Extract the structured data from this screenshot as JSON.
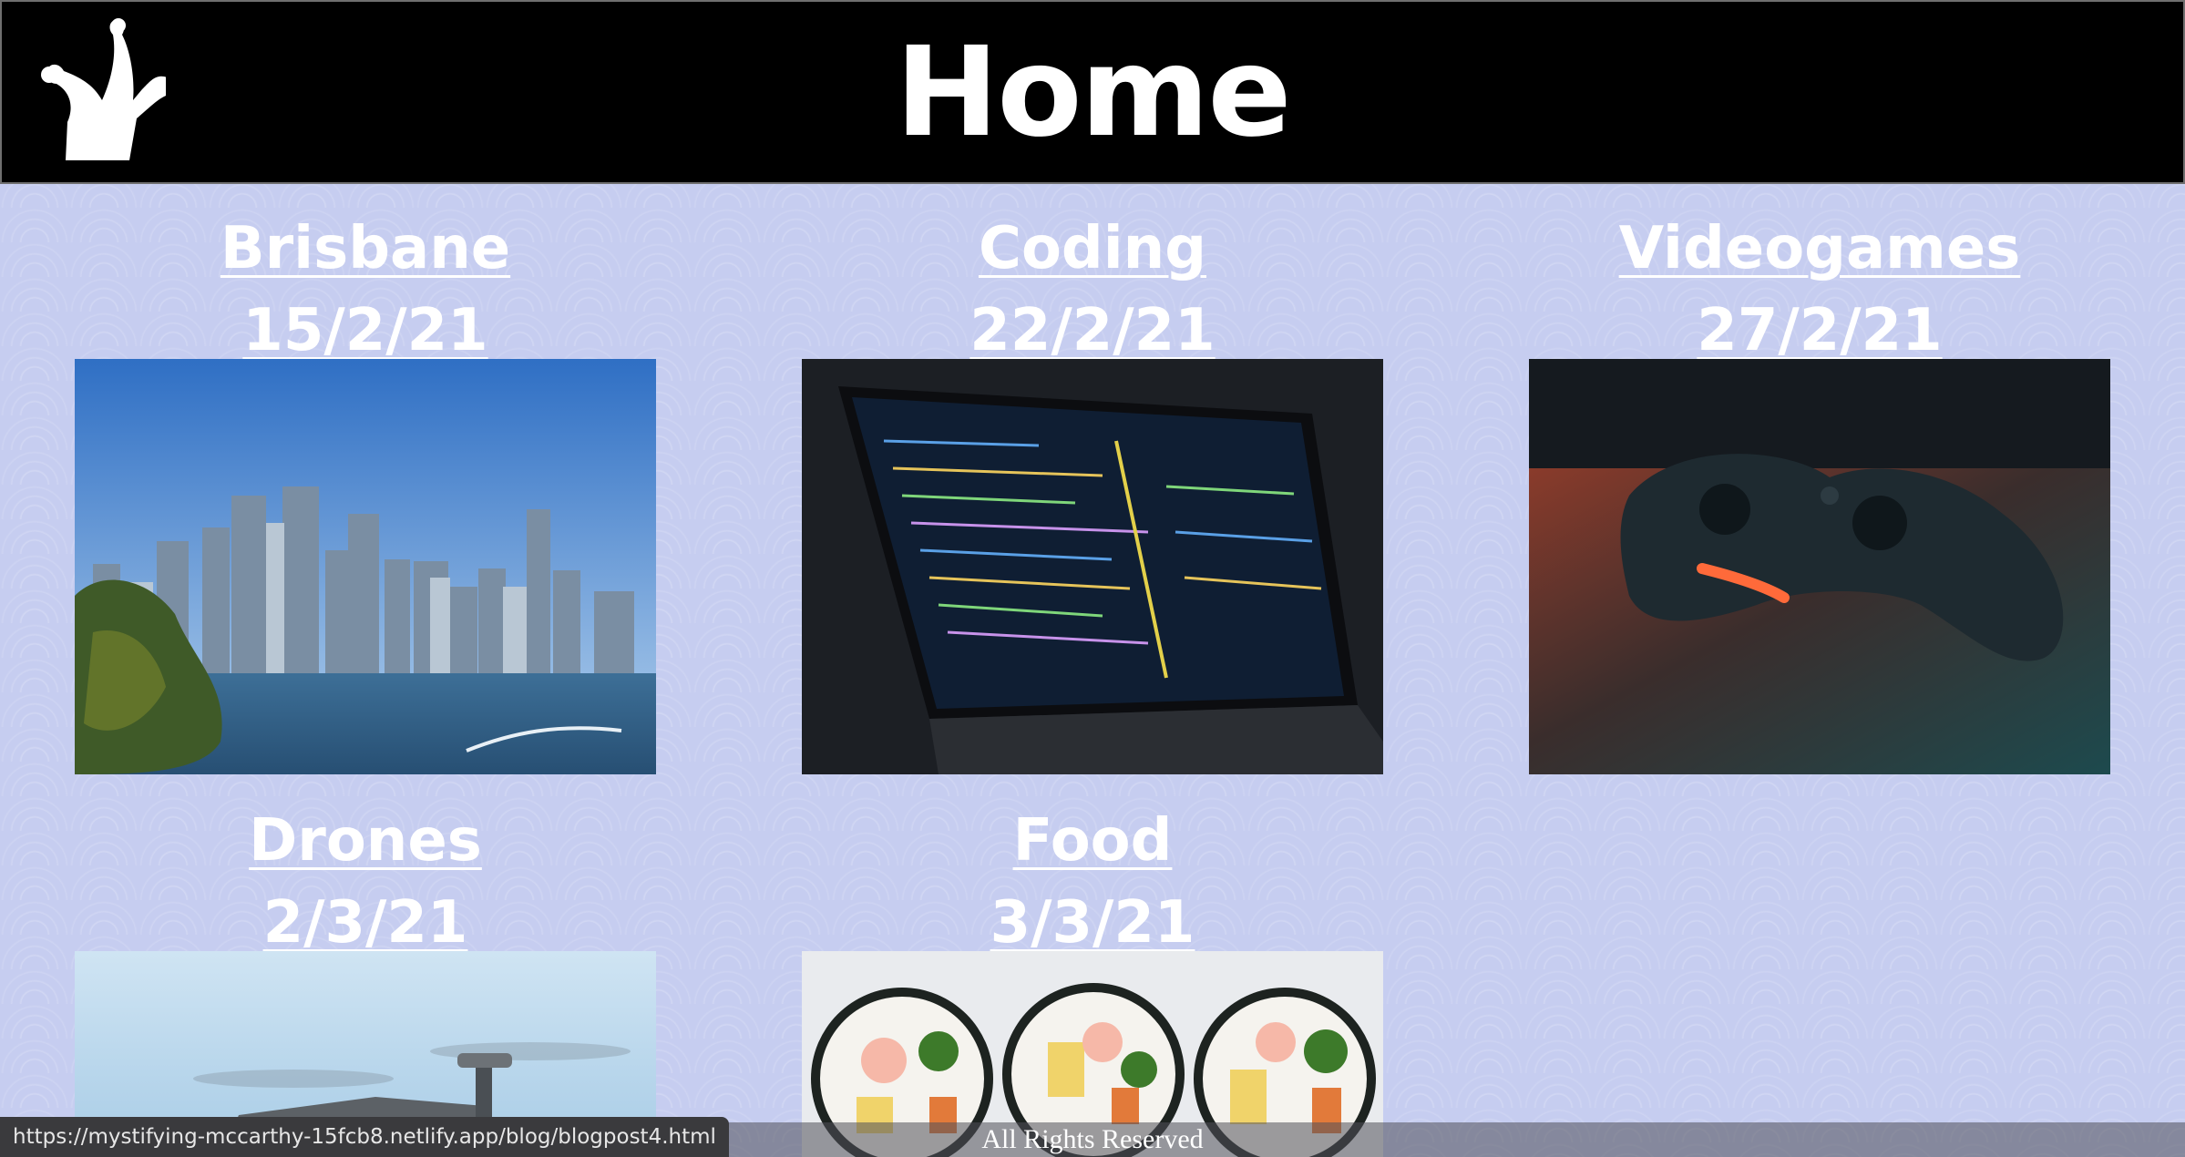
{
  "header": {
    "title": "Home",
    "logo_icon": "jester-hat-icon"
  },
  "posts": [
    {
      "title": "Brisbane",
      "date": "15/2/21",
      "image": "brisbane-skyline"
    },
    {
      "title": "Coding",
      "date": "22/2/21",
      "image": "laptop-code"
    },
    {
      "title": "Videogames",
      "date": "27/2/21",
      "image": "game-controller"
    },
    {
      "title": "Drones",
      "date": "2/3/21",
      "image": "drone"
    },
    {
      "title": "Food",
      "date": "3/3/21",
      "image": "sushi-rolls"
    }
  ],
  "status_bar": {
    "url": "https://mystifying-mccarthy-15fcb8.netlify.app/blog/blogpost4.html"
  },
  "footer": {
    "text": "All Rights Reserved"
  }
}
